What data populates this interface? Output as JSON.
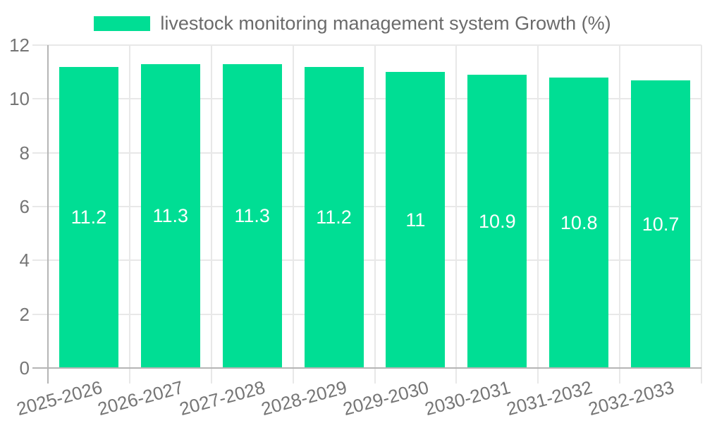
{
  "chart_data": {
    "type": "bar",
    "title": "livestock monitoring management system Growth (%)",
    "legend_label": "livestock monitoring management system Growth (%)",
    "legend_position": "top",
    "categories": [
      "2025-2026",
      "2026-2027",
      "2027-2028",
      "2028-2029",
      "2029-2030",
      "2030-2031",
      "2031-2032",
      "2032-2033"
    ],
    "values": [
      11.2,
      11.3,
      11.3,
      11.2,
      11,
      10.9,
      10.8,
      10.7
    ],
    "value_labels": [
      "11.2",
      "11.3",
      "11.3",
      "11.2",
      "11",
      "10.9",
      "10.8",
      "10.7"
    ],
    "xlabel": "",
    "ylabel": "",
    "ylim": [
      0,
      12
    ],
    "yticks": [
      0,
      2,
      4,
      6,
      8,
      10,
      12
    ],
    "grid": "on",
    "x_label_rotation_deg": -15,
    "colors": {
      "bar": "#00DE94",
      "value_label": "#FFFFFF",
      "grid": "#E8E8E8",
      "axis": "#B5B5B5",
      "tick_text": "#757575",
      "legend_text": "#6B6B6B",
      "background": "#FFFFFF"
    }
  }
}
